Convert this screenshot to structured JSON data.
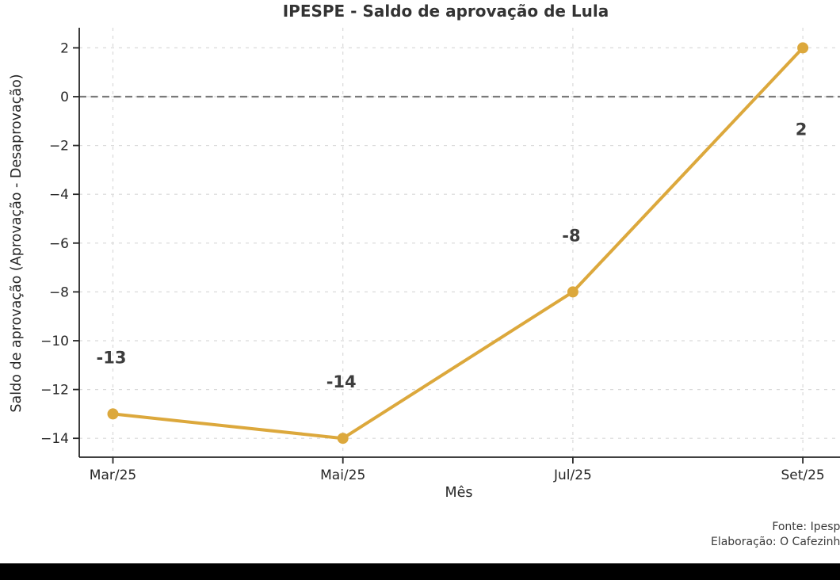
{
  "title": "IPESPE - Saldo de aprovação de Lula",
  "footer": {
    "line1": "Fonte: Ipespe",
    "line2": "Elaboração: O Cafezinho"
  },
  "chart_data": {
    "type": "line",
    "title": "IPESPE - Saldo de aprovação de Lula",
    "xlabel": "Mês",
    "ylabel": "Saldo de aprovação (Aprovação - Desaprovação)",
    "categories": [
      "Mar/25",
      "Mai/25",
      "Jul/25",
      "Set/25"
    ],
    "values": [
      -13,
      -14,
      -8,
      2
    ],
    "point_labels": [
      "-13",
      "-14",
      "-8",
      "2"
    ],
    "label_positions": [
      "above",
      "above",
      "above",
      "below"
    ],
    "yticks": [
      2,
      0,
      -2,
      -4,
      -6,
      -8,
      -10,
      -12,
      -14
    ],
    "ytick_labels": [
      "2",
      "0",
      "−2",
      "−4",
      "−6",
      "−8",
      "−10",
      "−12",
      "−14"
    ],
    "ylim": [
      -14.8,
      2.8
    ],
    "grid": true,
    "zero_line": true,
    "legend": "none",
    "line_color": "#DCA83C",
    "marker_color": "#DCA83C",
    "annotation_color": "#3d3d3d",
    "grid_color": "#d9d9d9",
    "zero_line_color": "#7a7a7a",
    "axis_color": "#262626",
    "tick_label_color": "#262626"
  }
}
